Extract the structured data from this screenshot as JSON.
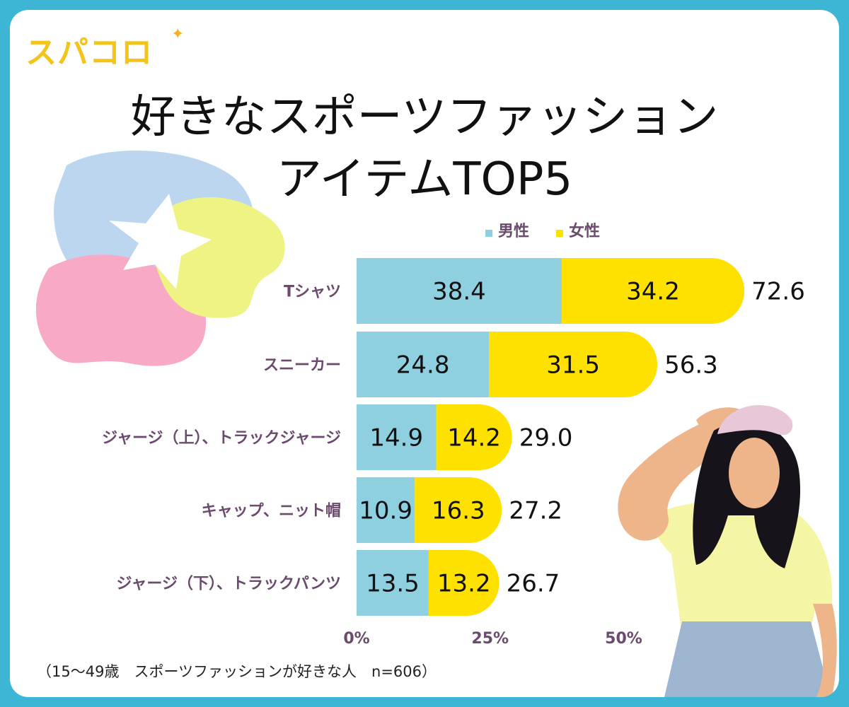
{
  "logo": {
    "text": "スパコロ",
    "star": "✦"
  },
  "title": {
    "line1": "好きなスポーツファッション",
    "line2": "アイテムTOP5"
  },
  "note": "（15〜49歳　スポーツファッションが好きな人　n=606）",
  "colors": {
    "male": "#8ecfe0",
    "female": "#ffe100",
    "frame": "#3db6d6",
    "label": "#6b4a6e",
    "logo": "#f5c41a"
  },
  "chart_data": {
    "type": "bar",
    "orientation": "horizontal",
    "stacked": true,
    "categories": [
      "Tシャツ",
      "スニーカー",
      "ジャージ（上）、トラックジャージ",
      "キャップ、ニット帽",
      "ジャージ（下）、トラックパンツ"
    ],
    "series": [
      {
        "name": "男性",
        "values": [
          38.4,
          24.8,
          14.9,
          10.9,
          13.5
        ],
        "labels": [
          "38.4",
          "24.8",
          "14.9",
          "10.9",
          "13.5"
        ]
      },
      {
        "name": "女性",
        "values": [
          34.2,
          31.5,
          14.2,
          16.3,
          13.2
        ],
        "labels": [
          "34.2",
          "31.5",
          "14.2",
          "16.3",
          "13.2"
        ]
      }
    ],
    "totals": [
      "72.6",
      "56.3",
      "29.0",
      "27.2",
      "26.7"
    ],
    "xticks": [
      "0%",
      "25%",
      "50%"
    ],
    "xtick_values": [
      0,
      25,
      50
    ],
    "xlim": [
      0,
      75
    ],
    "legend_position": "top"
  }
}
